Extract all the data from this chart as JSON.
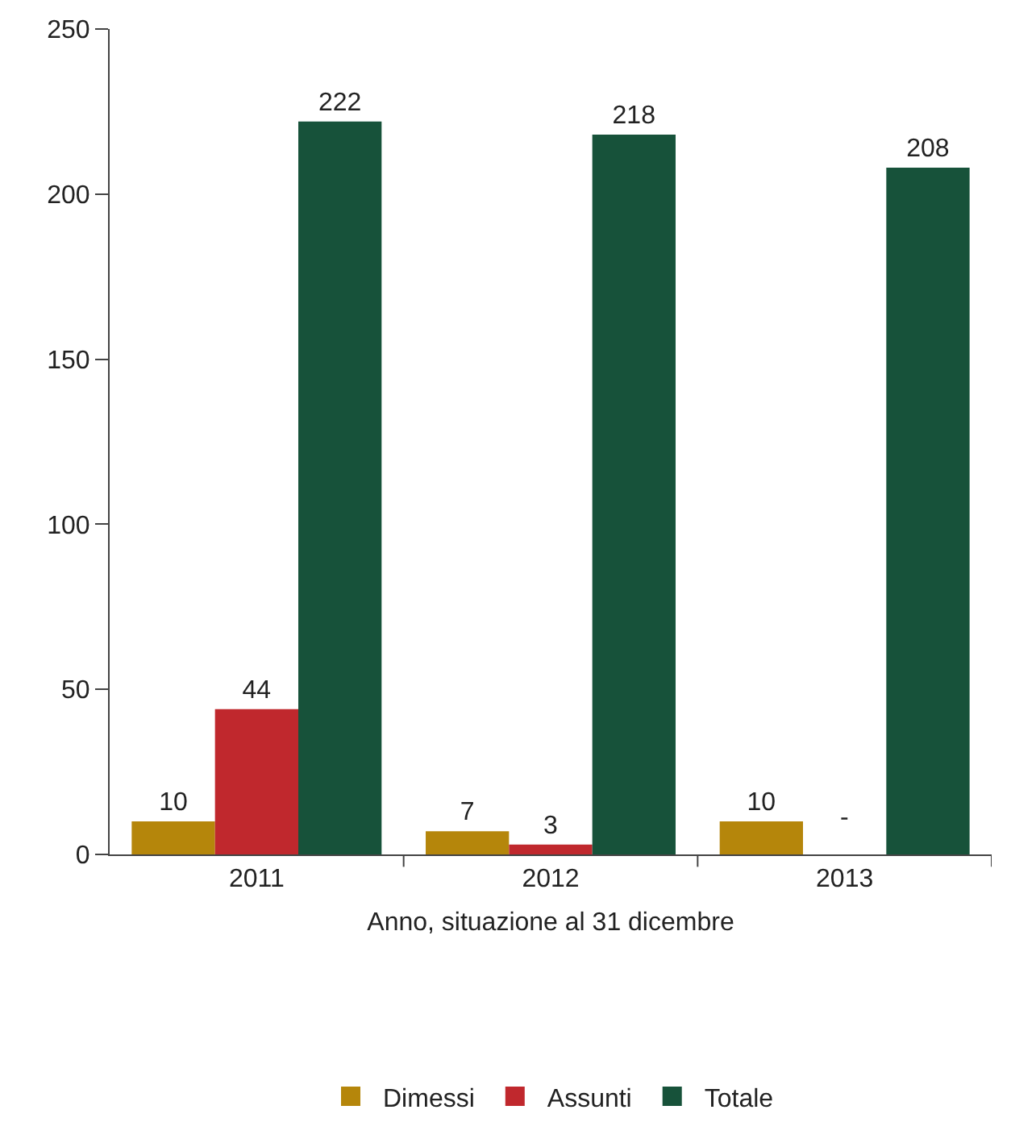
{
  "chart_data": {
    "type": "bar",
    "xlabel": "Anno, situazione al 31 dicembre",
    "categories": [
      "2011",
      "2012",
      "2013"
    ],
    "series": [
      {
        "name": "Dimessi",
        "color": "#b5860b",
        "values": [
          10,
          7,
          10
        ],
        "value_labels": [
          "10",
          "7",
          "10"
        ]
      },
      {
        "name": "Assunti",
        "color": "#c0282d",
        "values": [
          44,
          3,
          null
        ],
        "value_labels": [
          "44",
          "3",
          "-"
        ]
      },
      {
        "name": "Totale",
        "color": "#17523a",
        "values": [
          222,
          218,
          208
        ],
        "value_labels": [
          "222",
          "218",
          "208"
        ]
      }
    ],
    "ylim": [
      0,
      250
    ],
    "yticks": [
      0,
      50,
      100,
      150,
      200,
      250
    ],
    "grid": false,
    "legend": "bottom"
  }
}
